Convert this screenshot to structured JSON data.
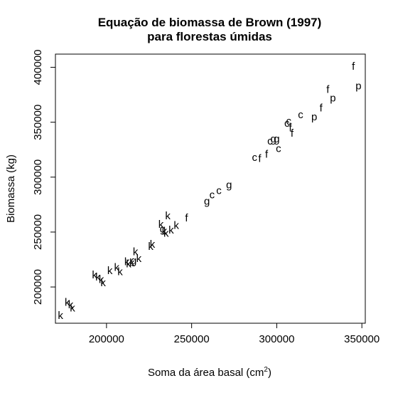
{
  "chart_data": {
    "type": "scatter",
    "title_line1": "Equação de biomassa de Brown (1997)",
    "title_line2": "para florestas úmidas",
    "xlabel": "Soma da área basal (cm",
    "xlabel_sup": "2",
    "xlabel_close": ")",
    "ylabel": "Biomassa (kg)",
    "xlim": [
      170000,
      352000
    ],
    "ylim": [
      167000,
      412000
    ],
    "xticks": [
      200000,
      250000,
      300000,
      350000
    ],
    "yticks": [
      200000,
      250000,
      300000,
      350000,
      400000
    ],
    "xtick_labels": [
      "200000",
      "250000",
      "300000",
      "350000"
    ],
    "ytick_labels": [
      "200000",
      "250000",
      "300000",
      "350000",
      "400000"
    ],
    "grid": false,
    "points": [
      {
        "x": 173000,
        "y": 174000,
        "label": "k"
      },
      {
        "x": 177000,
        "y": 186000,
        "label": "k"
      },
      {
        "x": 179000,
        "y": 184000,
        "label": "k"
      },
      {
        "x": 180000,
        "y": 181000,
        "label": "k"
      },
      {
        "x": 193000,
        "y": 211000,
        "label": "k"
      },
      {
        "x": 195000,
        "y": 209000,
        "label": "k"
      },
      {
        "x": 197000,
        "y": 207000,
        "label": "k"
      },
      {
        "x": 198000,
        "y": 204000,
        "label": "k"
      },
      {
        "x": 202000,
        "y": 215000,
        "label": "k"
      },
      {
        "x": 206000,
        "y": 218000,
        "label": "k"
      },
      {
        "x": 208000,
        "y": 214000,
        "label": "k"
      },
      {
        "x": 212000,
        "y": 223000,
        "label": "k"
      },
      {
        "x": 213000,
        "y": 221000,
        "label": "k"
      },
      {
        "x": 215000,
        "y": 222000,
        "label": "k"
      },
      {
        "x": 216000,
        "y": 224000,
        "label": "g"
      },
      {
        "x": 217000,
        "y": 232000,
        "label": "k"
      },
      {
        "x": 219000,
        "y": 226000,
        "label": "k"
      },
      {
        "x": 226000,
        "y": 237000,
        "label": "k"
      },
      {
        "x": 227000,
        "y": 239000,
        "label": "k"
      },
      {
        "x": 232000,
        "y": 257000,
        "label": "k"
      },
      {
        "x": 233000,
        "y": 253000,
        "label": "g"
      },
      {
        "x": 234000,
        "y": 251000,
        "label": "k"
      },
      {
        "x": 235000,
        "y": 249000,
        "label": "k"
      },
      {
        "x": 236000,
        "y": 265000,
        "label": "k"
      },
      {
        "x": 238000,
        "y": 252000,
        "label": "k"
      },
      {
        "x": 241000,
        "y": 256000,
        "label": "k"
      },
      {
        "x": 247000,
        "y": 263000,
        "label": "f"
      },
      {
        "x": 259000,
        "y": 278000,
        "label": "g"
      },
      {
        "x": 262000,
        "y": 284000,
        "label": "c"
      },
      {
        "x": 266000,
        "y": 288000,
        "label": "c"
      },
      {
        "x": 272000,
        "y": 293000,
        "label": "g"
      },
      {
        "x": 287000,
        "y": 318000,
        "label": "c"
      },
      {
        "x": 290000,
        "y": 317000,
        "label": "f"
      },
      {
        "x": 294000,
        "y": 321000,
        "label": "f"
      },
      {
        "x": 296000,
        "y": 333000,
        "label": "c"
      },
      {
        "x": 298000,
        "y": 335000,
        "label": "g"
      },
      {
        "x": 300000,
        "y": 335000,
        "label": "g"
      },
      {
        "x": 301000,
        "y": 326000,
        "label": "c"
      },
      {
        "x": 306000,
        "y": 349000,
        "label": "c"
      },
      {
        "x": 307000,
        "y": 351000,
        "label": "c"
      },
      {
        "x": 308000,
        "y": 345000,
        "label": "f"
      },
      {
        "x": 309000,
        "y": 340000,
        "label": "f"
      },
      {
        "x": 314000,
        "y": 357000,
        "label": "c"
      },
      {
        "x": 322000,
        "y": 355000,
        "label": "p"
      },
      {
        "x": 326000,
        "y": 363000,
        "label": "f"
      },
      {
        "x": 330000,
        "y": 380000,
        "label": "f"
      },
      {
        "x": 333000,
        "y": 372000,
        "label": "p"
      },
      {
        "x": 345000,
        "y": 401000,
        "label": "f"
      },
      {
        "x": 348000,
        "y": 383000,
        "label": "p"
      }
    ]
  }
}
